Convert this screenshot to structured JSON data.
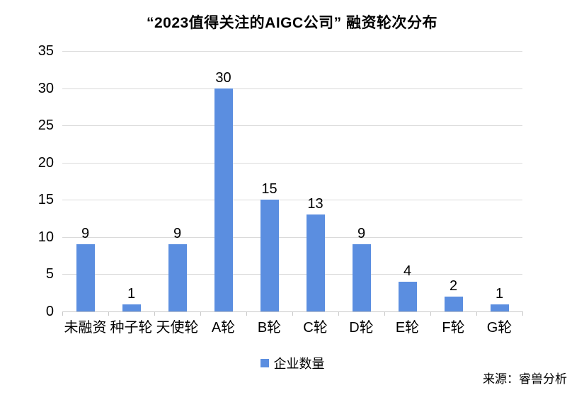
{
  "chart_data": {
    "type": "bar",
    "title": "“2023值得关注的AIGC公司” 融资轮次分布",
    "categories": [
      "未融资",
      "种子轮",
      "天使轮",
      "A轮",
      "B轮",
      "C轮",
      "D轮",
      "E轮",
      "F轮",
      "G轮"
    ],
    "values": [
      9,
      1,
      9,
      30,
      15,
      13,
      9,
      4,
      2,
      1
    ],
    "series_name": "企业数量",
    "xlabel": "",
    "ylabel": "",
    "ylim": [
      0,
      35
    ],
    "yticks": [
      0,
      5,
      10,
      15,
      20,
      25,
      30,
      35
    ],
    "grid": "horizontal",
    "data_labels": true,
    "legend_position": "bottom-center",
    "colors": {
      "bar": "#5B8EE0",
      "gridline": "#DADADA",
      "axis": "#C8C8C8",
      "text": "#000000"
    }
  },
  "source": {
    "label": "来源：睿兽分析"
  }
}
